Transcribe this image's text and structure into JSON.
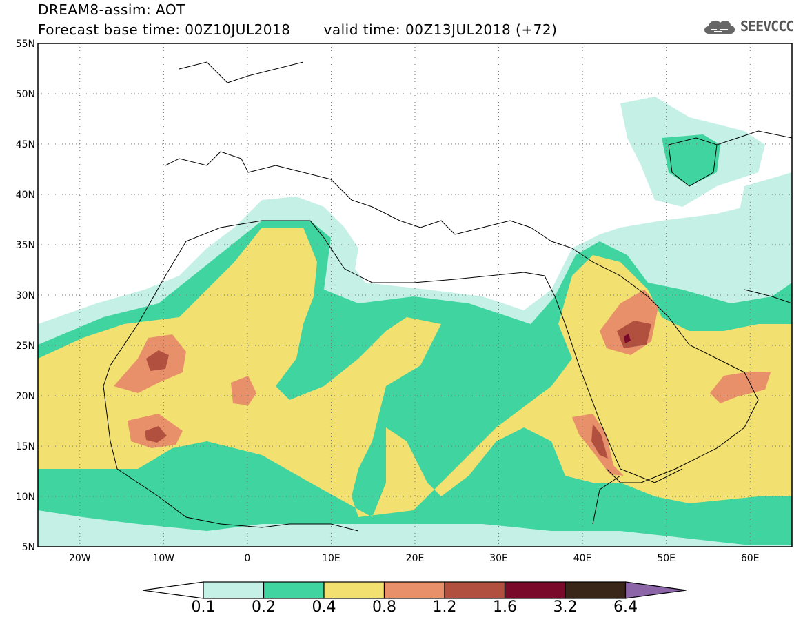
{
  "title_line1": "DREAM8-assim: AOT",
  "title_base": "Forecast base time: 00Z10JUL2018",
  "title_valid": "valid time: 00Z13JUL2018 (+72)",
  "logo_text": "SEEVCCC",
  "map": {
    "lon_range": [
      -25,
      65
    ],
    "lat_range": [
      5,
      55
    ],
    "lat_ticks": [
      {
        "value": 55,
        "label": "55N"
      },
      {
        "value": 50,
        "label": "50N"
      },
      {
        "value": 45,
        "label": "45N"
      },
      {
        "value": 40,
        "label": "40N"
      },
      {
        "value": 35,
        "label": "35N"
      },
      {
        "value": 30,
        "label": "30N"
      },
      {
        "value": 25,
        "label": "25N"
      },
      {
        "value": 20,
        "label": "20N"
      },
      {
        "value": 15,
        "label": "15N"
      },
      {
        "value": 10,
        "label": "10N"
      },
      {
        "value": 5,
        "label": "5N"
      }
    ],
    "lon_ticks": [
      {
        "value": -20,
        "label": "20W"
      },
      {
        "value": -10,
        "label": "10W"
      },
      {
        "value": 0,
        "label": "0"
      },
      {
        "value": 10,
        "label": "10E"
      },
      {
        "value": 20,
        "label": "20E"
      },
      {
        "value": 30,
        "label": "30E"
      },
      {
        "value": 40,
        "label": "40E"
      },
      {
        "value": 50,
        "label": "50E"
      },
      {
        "value": 60,
        "label": "60E"
      }
    ],
    "grid": "dotted"
  },
  "colorbar": {
    "levels": [
      "0.1",
      "0.2",
      "0.4",
      "0.8",
      "1.2",
      "1.6",
      "3.2",
      "6.4"
    ],
    "colors": [
      "#ffffff",
      "#c4f0e6",
      "#40d4a0",
      "#f2e070",
      "#e8906a",
      "#b25040",
      "#7a0a2a",
      "#3a2618",
      "#8c64a8"
    ]
  }
}
